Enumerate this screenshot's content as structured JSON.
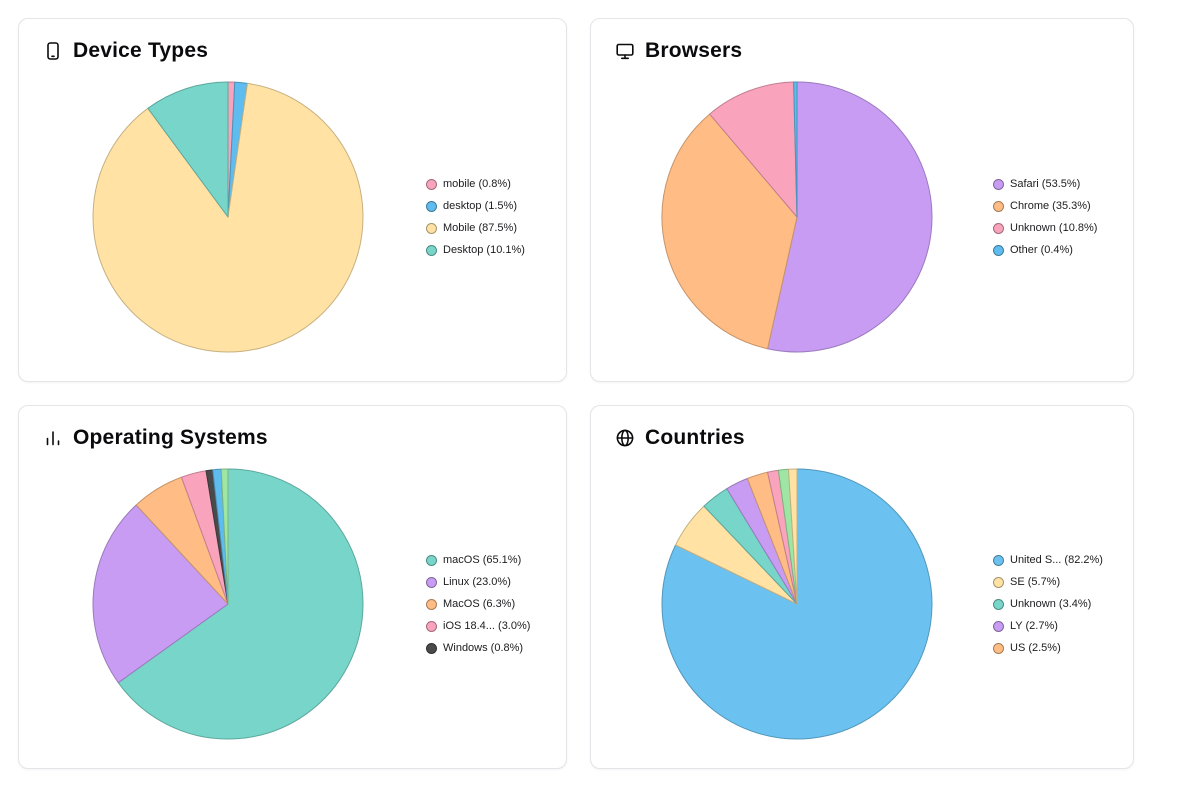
{
  "page": {
    "background": "#ffffff"
  },
  "chart_data": [
    {
      "type": "pie",
      "title": "Device Types",
      "icon": "smartphone-icon",
      "legend_position": "right",
      "slices": [
        {
          "label": "mobile",
          "pct": "0.8",
          "color": "#F9A3BC"
        },
        {
          "label": "desktop",
          "pct": "1.5",
          "color": "#5FBCEE"
        },
        {
          "label": "Mobile",
          "pct": "87.5",
          "color": "#FFE2A4"
        },
        {
          "label": "Desktop",
          "pct": "10.1",
          "color": "#77D6C9"
        }
      ],
      "extras": []
    },
    {
      "type": "pie",
      "title": "Browsers",
      "icon": "monitor-icon",
      "legend_position": "right",
      "slices": [
        {
          "label": "Safari",
          "pct": "53.5",
          "color": "#C79CF2"
        },
        {
          "label": "Chrome",
          "pct": "35.3",
          "color": "#FFBD85"
        },
        {
          "label": "Unknown",
          "pct": "10.8",
          "color": "#F9A3BC"
        },
        {
          "label": "Other",
          "pct": "0.4",
          "color": "#5FBCEE"
        }
      ],
      "extras": []
    },
    {
      "type": "pie",
      "title": "Operating Systems",
      "icon": "bar-chart-icon",
      "legend_position": "right",
      "slices": [
        {
          "label": "macOS",
          "pct": "65.1",
          "color": "#77D6C9"
        },
        {
          "label": "Linux",
          "pct": "23.0",
          "color": "#C79CF2"
        },
        {
          "label": "MacOS",
          "pct": "6.3",
          "color": "#FFBD85"
        },
        {
          "label": "iOS 18.4...",
          "pct": "3.0",
          "color": "#F9A3BC"
        },
        {
          "label": "Windows",
          "pct": "0.8",
          "color": "#4A4A4A"
        }
      ],
      "extras": [
        {
          "color": "#5FBCEE",
          "value": 1.0
        },
        {
          "color": "#9FE6A5",
          "value": 0.8
        }
      ]
    },
    {
      "type": "pie",
      "title": "Countries",
      "icon": "globe-icon",
      "legend_position": "right",
      "slices": [
        {
          "label": "United S...",
          "pct": "82.2",
          "color": "#6BC2F0"
        },
        {
          "label": "SE",
          "pct": "5.7",
          "color": "#FFE2A4"
        },
        {
          "label": "Unknown",
          "pct": "3.4",
          "color": "#77D6C9"
        },
        {
          "label": "LY",
          "pct": "2.7",
          "color": "#C79CF2"
        },
        {
          "label": "US",
          "pct": "2.5",
          "color": "#FFBD85"
        }
      ],
      "extras": [
        {
          "color": "#F9A3BC",
          "value": 1.3
        },
        {
          "color": "#9FE6A5",
          "value": 1.2
        },
        {
          "color": "#FFE2A4",
          "value": 1.0
        }
      ]
    }
  ]
}
